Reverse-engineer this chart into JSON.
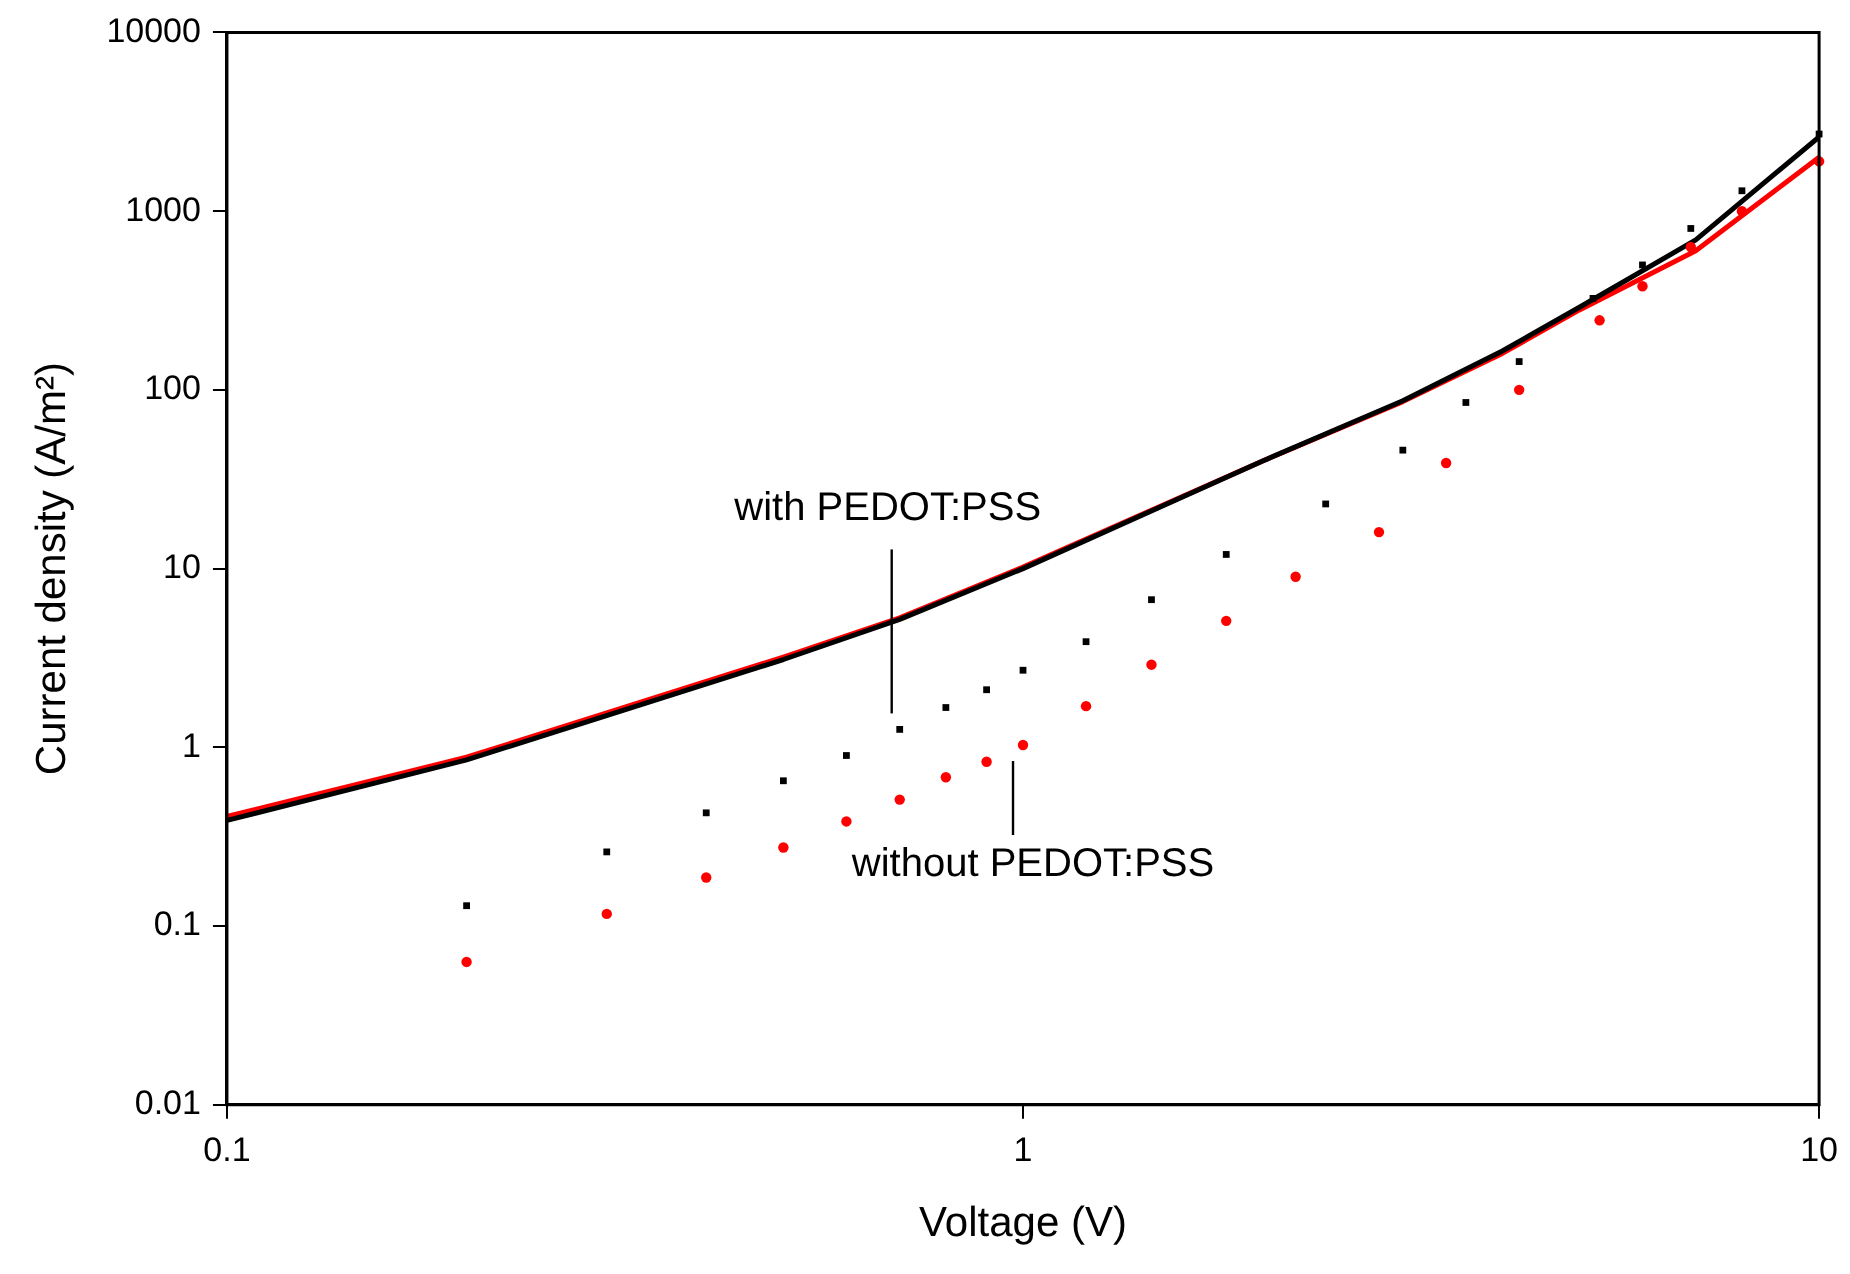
{
  "chart_data": {
    "type": "scatter",
    "xlabel": "Voltage (V)",
    "ylabel": "Current density (A/m²)",
    "log": "xy",
    "xlim": [
      0.1,
      10
    ],
    "ylim": [
      0.01,
      10000
    ],
    "xticks": [
      0.1,
      1,
      10
    ],
    "yticks": [
      0.01,
      0.1,
      1,
      10,
      100,
      1000,
      10000
    ],
    "grid": false,
    "legend": false,
    "series": [
      {
        "type": "line",
        "color": "#000000",
        "marker": "none",
        "x": [
          0.1,
          0.2,
          0.5,
          0.7,
          1,
          2,
          3,
          4,
          5,
          7,
          10
        ],
        "values": [
          0.39,
          0.85,
          3.1,
          5.2,
          10,
          40,
          87,
          165,
          290,
          690,
          2600
        ]
      },
      {
        "type": "line",
        "color": "#ff0000",
        "marker": "none",
        "x": [
          0.1,
          0.2,
          0.5,
          0.7,
          1,
          2,
          3,
          4,
          5,
          7,
          10
        ],
        "values": [
          0.41,
          0.88,
          3.2,
          5.3,
          10.2,
          40,
          86,
          160,
          280,
          600,
          2000
        ]
      },
      {
        "color": "#000000",
        "marker": "square",
        "x": [
          0.2,
          0.3,
          0.4,
          0.5,
          0.6,
          0.7,
          0.8,
          0.9,
          1,
          1.2,
          1.45,
          1.8,
          2.4,
          3,
          3.6,
          4.2,
          5.2,
          6,
          6.9,
          8,
          10
        ],
        "values": [
          0.13,
          0.26,
          0.43,
          0.65,
          0.9,
          1.26,
          1.67,
          2.1,
          2.7,
          3.9,
          6.7,
          12,
          23,
          46,
          85,
          144,
          325,
          500,
          800,
          1300,
          2700
        ]
      },
      {
        "color": "#ff0000",
        "marker": "circle",
        "x": [
          0.2,
          0.3,
          0.4,
          0.5,
          0.6,
          0.7,
          0.8,
          0.9,
          1,
          1.2,
          1.45,
          1.8,
          2.2,
          2.8,
          3.4,
          4.2,
          5.3,
          6,
          6.9,
          8,
          10
        ],
        "values": [
          0.063,
          0.117,
          0.187,
          0.275,
          0.385,
          0.51,
          0.68,
          0.83,
          1.03,
          1.7,
          2.9,
          5.1,
          9,
          16,
          39,
          100,
          245,
          380,
          630,
          1000,
          1900
        ]
      }
    ],
    "annotations": [
      {
        "text": "with PEDOT:PSS",
        "x": 0.7,
        "y": 1.26
      },
      {
        "text": "without PEDOT:PSS",
        "x": 1,
        "y": 1.03
      }
    ]
  }
}
